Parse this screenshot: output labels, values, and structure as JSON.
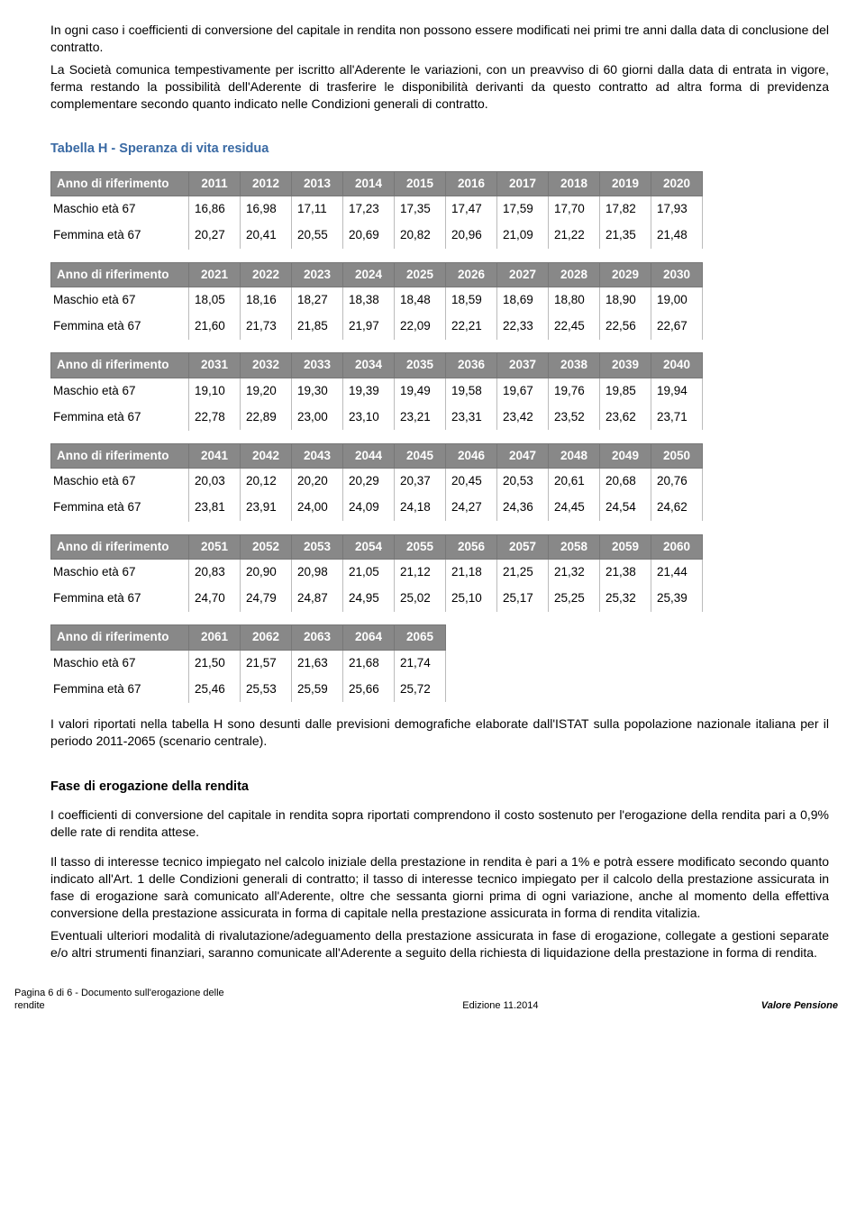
{
  "intro": {
    "p1": "In ogni caso i coefficienti di conversione del capitale in rendita non possono essere modificati nei primi tre anni dalla data di conclusione del contratto.",
    "p2": "La Società comunica tempestivamente per iscritto all'Aderente le variazioni, con un preavviso di 60 giorni dalla data di entrata in vigore, ferma restando la possibilità dell'Aderente di trasferire le disponibilità derivanti da questo contratto ad altra forma di previdenza complementare secondo quanto indicato nelle Condizioni generali di contratto."
  },
  "table": {
    "title": "Tabella H - Speranza di vita residua",
    "header_label": "Anno di riferimento",
    "row_labels": [
      "Maschio età 67",
      "Femmina età 67"
    ],
    "blocks": [
      {
        "years": [
          "2011",
          "2012",
          "2013",
          "2014",
          "2015",
          "2016",
          "2017",
          "2018",
          "2019",
          "2020"
        ],
        "rows": [
          [
            "16,86",
            "16,98",
            "17,11",
            "17,23",
            "17,35",
            "17,47",
            "17,59",
            "17,70",
            "17,82",
            "17,93"
          ],
          [
            "20,27",
            "20,41",
            "20,55",
            "20,69",
            "20,82",
            "20,96",
            "21,09",
            "21,22",
            "21,35",
            "21,48"
          ]
        ]
      },
      {
        "years": [
          "2021",
          "2022",
          "2023",
          "2024",
          "2025",
          "2026",
          "2027",
          "2028",
          "2029",
          "2030"
        ],
        "rows": [
          [
            "18,05",
            "18,16",
            "18,27",
            "18,38",
            "18,48",
            "18,59",
            "18,69",
            "18,80",
            "18,90",
            "19,00"
          ],
          [
            "21,60",
            "21,73",
            "21,85",
            "21,97",
            "22,09",
            "22,21",
            "22,33",
            "22,45",
            "22,56",
            "22,67"
          ]
        ]
      },
      {
        "years": [
          "2031",
          "2032",
          "2033",
          "2034",
          "2035",
          "2036",
          "2037",
          "2038",
          "2039",
          "2040"
        ],
        "rows": [
          [
            "19,10",
            "19,20",
            "19,30",
            "19,39",
            "19,49",
            "19,58",
            "19,67",
            "19,76",
            "19,85",
            "19,94"
          ],
          [
            "22,78",
            "22,89",
            "23,00",
            "23,10",
            "23,21",
            "23,31",
            "23,42",
            "23,52",
            "23,62",
            "23,71"
          ]
        ]
      },
      {
        "years": [
          "2041",
          "2042",
          "2043",
          "2044",
          "2045",
          "2046",
          "2047",
          "2048",
          "2049",
          "2050"
        ],
        "rows": [
          [
            "20,03",
            "20,12",
            "20,20",
            "20,29",
            "20,37",
            "20,45",
            "20,53",
            "20,61",
            "20,68",
            "20,76"
          ],
          [
            "23,81",
            "23,91",
            "24,00",
            "24,09",
            "24,18",
            "24,27",
            "24,36",
            "24,45",
            "24,54",
            "24,62"
          ]
        ]
      },
      {
        "years": [
          "2051",
          "2052",
          "2053",
          "2054",
          "2055",
          "2056",
          "2057",
          "2058",
          "2059",
          "2060"
        ],
        "rows": [
          [
            "20,83",
            "20,90",
            "20,98",
            "21,05",
            "21,12",
            "21,18",
            "21,25",
            "21,32",
            "21,38",
            "21,44"
          ],
          [
            "24,70",
            "24,79",
            "24,87",
            "24,95",
            "25,02",
            "25,10",
            "25,17",
            "25,25",
            "25,32",
            "25,39"
          ]
        ]
      },
      {
        "years": [
          "2061",
          "2062",
          "2063",
          "2064",
          "2065"
        ],
        "rows": [
          [
            "21,50",
            "21,57",
            "21,63",
            "21,68",
            "21,74"
          ],
          [
            "25,46",
            "25,53",
            "25,59",
            "25,66",
            "25,72"
          ]
        ]
      }
    ],
    "colors": {
      "header_bg": "#888888",
      "header_text": "#ffffff",
      "cell_border": "#bbbbbb"
    }
  },
  "after_table": {
    "p1": "I valori riportati nella tabella H sono desunti dalle previsioni demografiche elaborate dall'ISTAT sulla popolazione nazionale italiana per il periodo 2011-2065 (scenario centrale).",
    "heading": "Fase di erogazione della rendita",
    "p2": "I coefficienti di conversione del capitale in rendita sopra riportati comprendono il costo sostenuto per l'erogazione della rendita pari a 0,9% delle rate di rendita attese.",
    "p3": "Il tasso di interesse tecnico impiegato nel calcolo iniziale della prestazione in rendita è pari a 1% e potrà essere modificato secondo quanto indicato all'Art. 1 delle Condizioni generali di contratto; il tasso di interesse tecnico impiegato per il calcolo della prestazione assicurata in fase di erogazione sarà comunicato all'Aderente, oltre che sessanta giorni prima di ogni variazione, anche al momento della effettiva conversione della prestazione assicurata in forma di capitale nella prestazione assicurata in forma di rendita vitalizia.",
    "p4": "Eventuali ulteriori modalità di rivalutazione/adeguamento della prestazione assicurata in fase di erogazione, collegate a gestioni separate e/o altri strumenti finanziari, saranno comunicate all'Aderente a seguito della richiesta di liquidazione della prestazione in forma di rendita."
  },
  "footer": {
    "left": "Pagina 6 di 6 - Documento sull'erogazione delle rendite",
    "center": "Edizione 11.2014",
    "right": "Valore Pensione"
  }
}
